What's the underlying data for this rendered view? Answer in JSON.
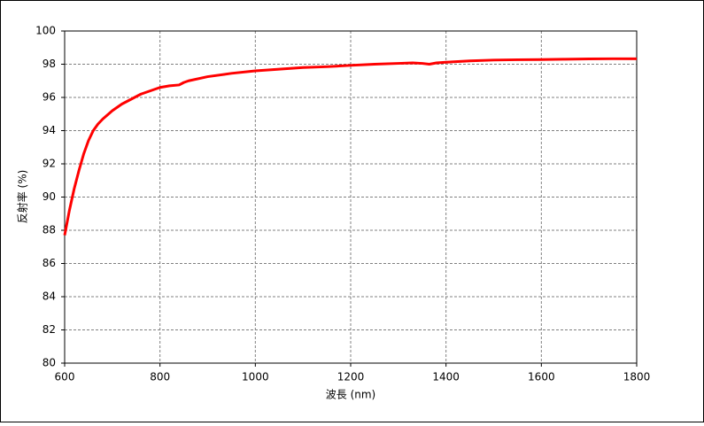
{
  "chart_data": {
    "type": "line",
    "x_label": "波長 (nm)",
    "y_label": "反射率 (%)",
    "x": [
      600,
      610,
      620,
      630,
      640,
      650,
      660,
      670,
      680,
      700,
      720,
      740,
      760,
      780,
      800,
      820,
      840,
      850,
      860,
      900,
      950,
      1000,
      1050,
      1100,
      1150,
      1200,
      1250,
      1300,
      1330,
      1350,
      1365,
      1380,
      1400,
      1450,
      1500,
      1550,
      1600,
      1650,
      1700,
      1750,
      1800
    ],
    "series": [
      {
        "color": "#ff0000",
        "values": [
          87.7,
          89.2,
          90.5,
          91.6,
          92.6,
          93.4,
          94.0,
          94.4,
          94.7,
          95.2,
          95.6,
          95.9,
          96.2,
          96.4,
          96.6,
          96.7,
          96.75,
          96.9,
          97.0,
          97.25,
          97.45,
          97.6,
          97.7,
          97.8,
          97.85,
          97.93,
          98.0,
          98.05,
          98.08,
          98.05,
          98.0,
          98.08,
          98.12,
          98.2,
          98.25,
          98.27,
          98.28,
          98.3,
          98.32,
          98.33,
          98.33
        ]
      }
    ],
    "xlim": [
      600,
      1800
    ],
    "xticks": [
      600,
      800,
      1000,
      1200,
      1400,
      1600,
      1800
    ],
    "ylim": [
      80,
      100
    ],
    "yticks": [
      80,
      82,
      84,
      86,
      88,
      90,
      92,
      94,
      96,
      98,
      100
    ],
    "grid": true
  }
}
